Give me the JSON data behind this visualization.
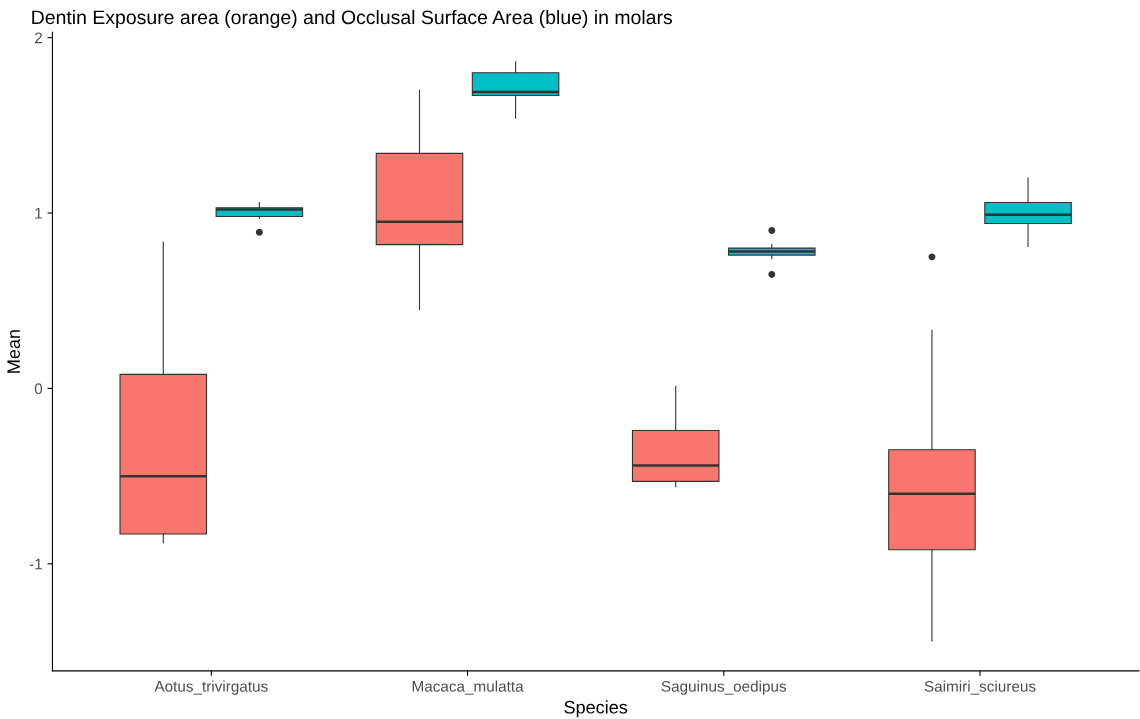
{
  "chart_data": {
    "type": "box",
    "title": "Dentin Exposure area (orange) and Occlusal Surface Area (blue) in molars",
    "xlabel": "Species",
    "ylabel": "Mean",
    "categories": [
      "Aotus_trivirgatus",
      "Macaca_mulatta",
      "Saguinus_oedipus",
      "Saimiri_sciureus"
    ],
    "ylim": [
      -1.61,
      2.03
    ],
    "yticks": [
      -1,
      0,
      1,
      2
    ],
    "grid": false,
    "legend": false,
    "series": [
      {
        "color": "#f8766d",
        "boxes": [
          {
            "low": -0.88,
            "q1": -0.83,
            "median": -0.5,
            "q3": 0.08,
            "high": 0.835
          },
          {
            "low": 0.45,
            "q1": 0.82,
            "median": 0.95,
            "q3": 1.34,
            "high": 1.7
          },
          {
            "low": -0.56,
            "q1": -0.53,
            "median": -0.44,
            "q3": -0.24,
            "high": 0.01
          },
          {
            "low": -1.44,
            "q1": -0.92,
            "median": -0.6,
            "q3": -0.35,
            "high": 0.33,
            "outliers": [
              0.75
            ]
          }
        ]
      },
      {
        "color": "#00bfc4",
        "boxes": [
          {
            "low": 0.97,
            "q1": 0.98,
            "median": 1.02,
            "q3": 1.03,
            "high": 1.06,
            "outliers": [
              0.89
            ]
          },
          {
            "low": 1.54,
            "q1": 1.67,
            "median": 1.69,
            "q3": 1.8,
            "high": 1.86
          },
          {
            "low": 0.74,
            "q1": 0.76,
            "median": 0.78,
            "q3": 0.8,
            "high": 0.82,
            "outliers": [
              0.9,
              0.65
            ]
          },
          {
            "low": 0.81,
            "q1": 0.94,
            "median": 0.99,
            "q3": 1.06,
            "high": 1.2
          }
        ]
      }
    ]
  }
}
